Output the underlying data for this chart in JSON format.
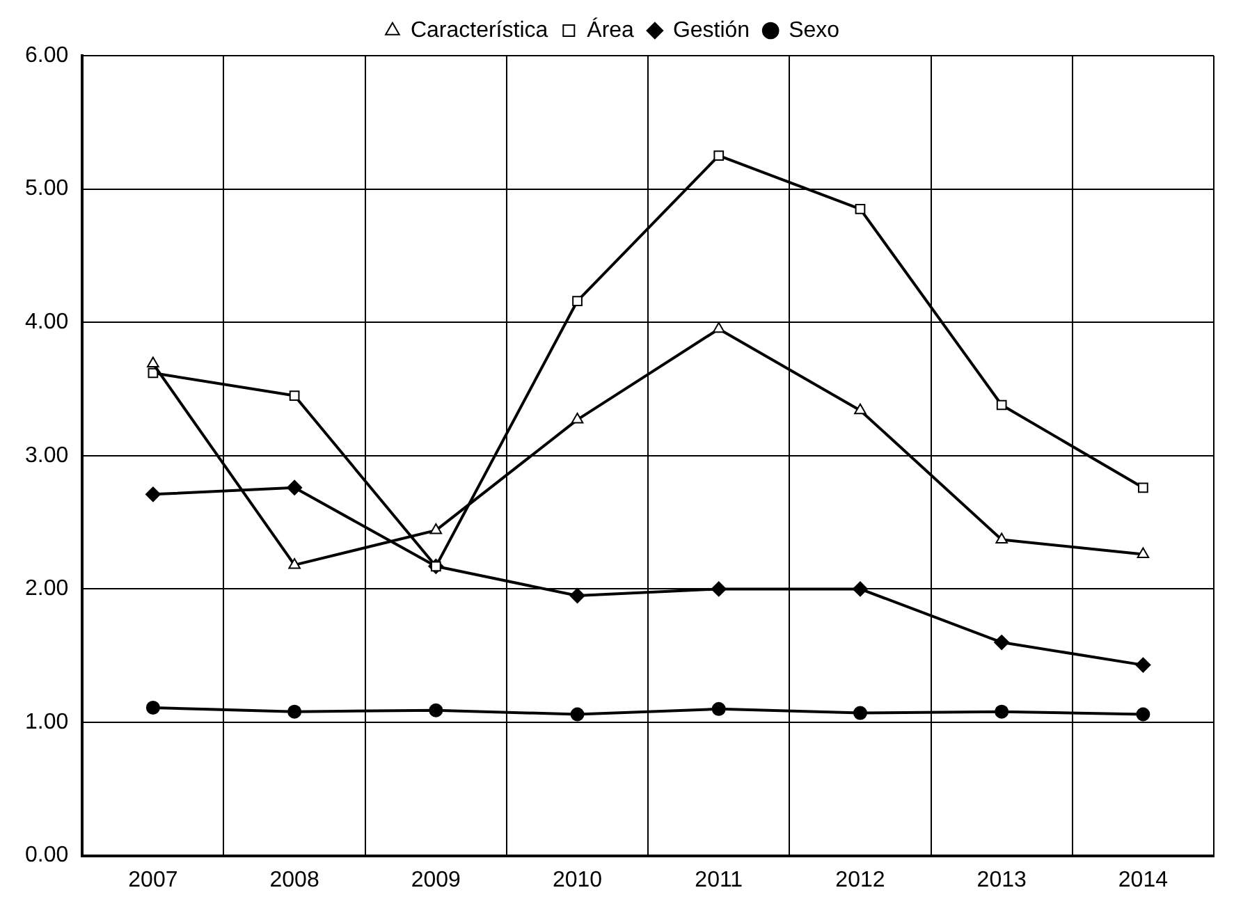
{
  "chart_data": {
    "type": "line",
    "categories": [
      "2007",
      "2008",
      "2009",
      "2010",
      "2011",
      "2012",
      "2013",
      "2014"
    ],
    "series": [
      {
        "name": "Característica",
        "color": "#000000",
        "marker": "triangle",
        "values": [
          3.69,
          2.18,
          2.44,
          3.27,
          3.95,
          3.34,
          2.37,
          2.26
        ]
      },
      {
        "name": "Área",
        "color": "#000000",
        "marker": "square",
        "values": [
          3.62,
          3.45,
          2.17,
          4.16,
          5.25,
          4.85,
          3.38,
          2.76
        ]
      },
      {
        "name": "Gestión",
        "color": "#000000",
        "marker": "diamond",
        "values": [
          2.71,
          2.76,
          2.17,
          1.95,
          2.0,
          2.0,
          1.6,
          1.43
        ]
      },
      {
        "name": "Sexo",
        "color": "#000000",
        "marker": "circle",
        "values": [
          1.11,
          1.08,
          1.09,
          1.06,
          1.1,
          1.07,
          1.08,
          1.06
        ]
      }
    ],
    "ylim": [
      0,
      6
    ],
    "yticks": [
      {
        "value": 0,
        "label": "0.00"
      },
      {
        "value": 1,
        "label": "1.00"
      },
      {
        "value": 2,
        "label": "2.00"
      },
      {
        "value": 3,
        "label": "3.00"
      },
      {
        "value": 4,
        "label": "4.00"
      },
      {
        "value": 5,
        "label": "5.00"
      },
      {
        "value": 6,
        "label": "6.00"
      }
    ],
    "grid": true,
    "legend": "top",
    "line_style": "solid"
  }
}
